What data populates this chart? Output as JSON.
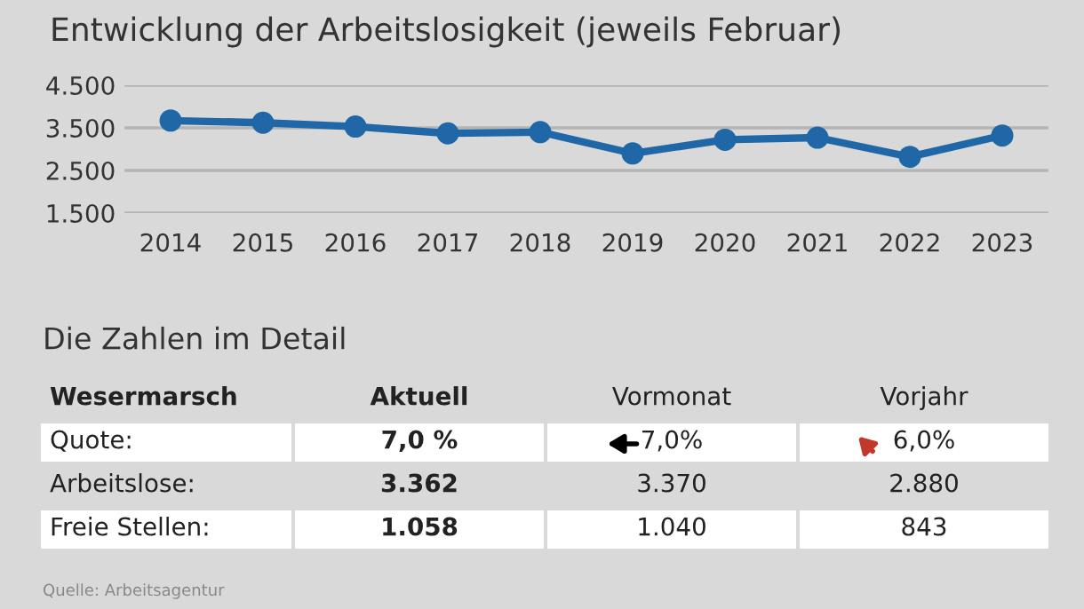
{
  "chart_data": [
    {
      "type": "line",
      "title": "Entwicklung der Arbeitslosigkeit (jeweils Februar)",
      "categories": [
        "2014",
        "2015",
        "2016",
        "2017",
        "2018",
        "2019",
        "2020",
        "2021",
        "2022",
        "2023"
      ],
      "series": [
        {
          "color": "#1f67a6",
          "values": [
            3670,
            3620,
            3530,
            3370,
            3400,
            2900,
            3220,
            3270,
            2820,
            3320
          ]
        }
      ],
      "ylim": [
        1500,
        4500
      ],
      "yticks": [
        {
          "value": 1500,
          "label": "1.500"
        },
        {
          "value": 2500,
          "label": "2.500"
        },
        {
          "value": 3500,
          "label": "3.500"
        },
        {
          "value": 4500,
          "label": "4.500"
        }
      ],
      "grid": "y",
      "marker": "circle",
      "line_style": "solid"
    },
    {
      "type": "other",
      "title": "Die Zahlen im Detail",
      "annotations": [
        "Wesermarsch",
        "Aktuell",
        "Vormonat",
        "Vorjahr",
        "Quote:",
        "7,0 %",
        "7,0%",
        "6,0%",
        "Arbeitslose:",
        "3.362",
        "3.370",
        "2.880",
        "Freie Stellen:",
        "1.058",
        "1.040",
        "843",
        "Quelle: Arbeitsagentur"
      ]
    }
  ]
}
